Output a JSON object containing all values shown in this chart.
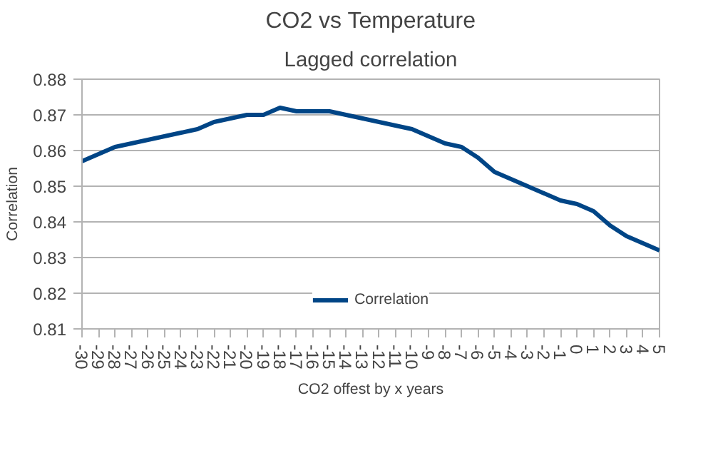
{
  "chart_data": {
    "type": "line",
    "title": "CO2 vs Temperature",
    "subtitle": "Lagged correlation",
    "xlabel": "CO2 offest by x years",
    "ylabel": "Correlation",
    "x": [
      -30,
      -29,
      -28,
      -27,
      -26,
      -25,
      -24,
      -23,
      -22,
      -21,
      -20,
      -19,
      -18,
      -17,
      -16,
      -15,
      -14,
      -13,
      -12,
      -11,
      -10,
      -9,
      -8,
      -7,
      -6,
      -5,
      -4,
      -3,
      -2,
      -1,
      0,
      1,
      2,
      3,
      4,
      5
    ],
    "series": [
      {
        "name": "Correlation",
        "color": "#004586",
        "values": [
          0.857,
          0.859,
          0.861,
          0.862,
          0.863,
          0.864,
          0.865,
          0.866,
          0.868,
          0.869,
          0.87,
          0.87,
          0.872,
          0.871,
          0.871,
          0.871,
          0.87,
          0.869,
          0.868,
          0.867,
          0.866,
          0.864,
          0.862,
          0.861,
          0.858,
          0.854,
          0.852,
          0.85,
          0.848,
          0.846,
          0.845,
          0.843,
          0.839,
          0.836,
          0.834,
          0.832
        ]
      }
    ],
    "xlim": [
      -30,
      5
    ],
    "xticks": [
      -30,
      -29,
      -28,
      -27,
      -26,
      -25,
      -24,
      -23,
      -22,
      -21,
      -20,
      -19,
      -18,
      -17,
      -16,
      -15,
      -14,
      -13,
      -12,
      -11,
      -10,
      -9,
      -8,
      -7,
      -6,
      -5,
      -4,
      -3,
      -2,
      -1,
      0,
      1,
      2,
      3,
      4,
      5
    ],
    "ylim": [
      0.81,
      0.88
    ],
    "yticks": [
      0.81,
      0.82,
      0.83,
      0.84,
      0.85,
      0.86,
      0.87,
      0.88
    ],
    "grid": "y",
    "legend": "bottom",
    "marker": "none",
    "line_style": "solid"
  }
}
